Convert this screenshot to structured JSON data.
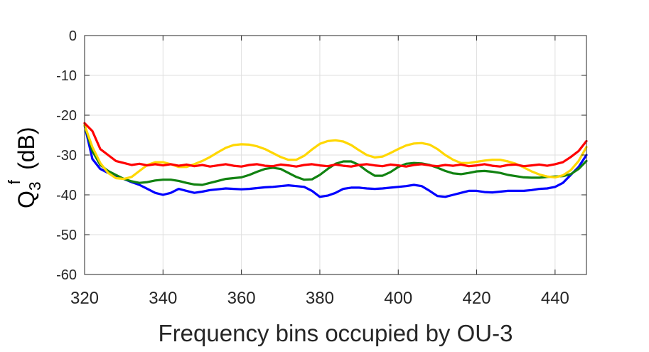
{
  "chart_data": {
    "type": "line",
    "xlabel": "Frequency bins occupied by OU-3",
    "ylabel": {
      "main": "Q",
      "subscript": "3",
      "superscript": "f",
      "unit": "(dB)"
    },
    "xlim": [
      320,
      448
    ],
    "ylim": [
      -60,
      0
    ],
    "xticks": [
      320,
      340,
      360,
      380,
      400,
      420,
      440
    ],
    "yticks": [
      0,
      -10,
      -20,
      -30,
      -40,
      -50,
      -60
    ],
    "grid": true,
    "legend": "none",
    "series": [
      {
        "color": "#0000ff",
        "x": [
          320,
          322,
          324,
          326,
          328,
          330,
          332,
          334,
          336,
          338,
          340,
          342,
          344,
          346,
          348,
          350,
          352,
          354,
          356,
          358,
          360,
          362,
          364,
          366,
          368,
          370,
          372,
          374,
          376,
          378,
          380,
          382,
          384,
          386,
          388,
          390,
          392,
          394,
          396,
          398,
          400,
          402,
          404,
          406,
          408,
          410,
          412,
          414,
          416,
          418,
          420,
          422,
          424,
          426,
          428,
          430,
          432,
          434,
          436,
          438,
          440,
          442,
          444,
          446,
          448
        ],
        "y": [
          -22.5,
          -31,
          -33.5,
          -34.5,
          -35.5,
          -36,
          -36.8,
          -37.5,
          -38.5,
          -39.5,
          -40,
          -39.5,
          -38.5,
          -39,
          -39.5,
          -39.2,
          -38.8,
          -38.6,
          -38.4,
          -38.5,
          -38.6,
          -38.5,
          -38.3,
          -38.1,
          -38,
          -37.8,
          -37.6,
          -37.8,
          -38,
          -39,
          -40.5,
          -40.2,
          -39.5,
          -38.5,
          -38.2,
          -38.2,
          -38.4,
          -38.5,
          -38.4,
          -38.2,
          -38,
          -37.8,
          -37.5,
          -37.8,
          -39,
          -40.3,
          -40.5,
          -40,
          -39.5,
          -39,
          -39,
          -39.3,
          -39.4,
          -39.2,
          -39,
          -39,
          -39,
          -38.8,
          -38.5,
          -38.4,
          -38,
          -37,
          -35,
          -33,
          -30
        ]
      },
      {
        "color": "#118211",
        "x": [
          320,
          322,
          324,
          326,
          328,
          330,
          332,
          334,
          336,
          338,
          340,
          342,
          344,
          346,
          348,
          350,
          352,
          354,
          356,
          358,
          360,
          362,
          364,
          366,
          368,
          370,
          372,
          374,
          376,
          378,
          380,
          382,
          384,
          386,
          388,
          390,
          392,
          394,
          396,
          398,
          400,
          402,
          404,
          406,
          408,
          410,
          412,
          414,
          416,
          418,
          420,
          422,
          424,
          426,
          428,
          430,
          432,
          434,
          436,
          438,
          440,
          442,
          444,
          446,
          448
        ],
        "y": [
          -22.5,
          -29,
          -32.5,
          -34,
          -35,
          -36,
          -36.6,
          -37,
          -36.8,
          -36.4,
          -36.2,
          -36.2,
          -36.5,
          -37,
          -37.4,
          -37.5,
          -37,
          -36.5,
          -36,
          -35.8,
          -35.6,
          -35,
          -34.2,
          -33.5,
          -33.2,
          -33.5,
          -34.5,
          -35.5,
          -36.2,
          -36.1,
          -35,
          -33.5,
          -32.2,
          -31.6,
          -31.6,
          -32.5,
          -34,
          -35.2,
          -35.2,
          -34.3,
          -33,
          -32.2,
          -32,
          -32.1,
          -32.5,
          -33.2,
          -34,
          -34.6,
          -34.8,
          -34.5,
          -34.1,
          -34,
          -34.2,
          -34.5,
          -35,
          -35.3,
          -35.6,
          -35.7,
          -35.7,
          -35.5,
          -35.4,
          -35.3,
          -34.8,
          -33.5,
          -31.5
        ]
      },
      {
        "color": "#ffd700",
        "x": [
          320,
          322,
          324,
          326,
          328,
          330,
          332,
          334,
          336,
          338,
          340,
          342,
          344,
          346,
          348,
          350,
          352,
          354,
          356,
          358,
          360,
          362,
          364,
          366,
          368,
          370,
          372,
          374,
          376,
          378,
          380,
          382,
          384,
          386,
          388,
          390,
          392,
          394,
          396,
          398,
          400,
          402,
          404,
          406,
          408,
          410,
          412,
          414,
          416,
          418,
          420,
          422,
          424,
          426,
          428,
          430,
          432,
          434,
          436,
          438,
          440,
          442,
          444,
          446,
          448
        ],
        "y": [
          -22.5,
          -28,
          -32,
          -34.5,
          -35.8,
          -36,
          -35.5,
          -34,
          -32.5,
          -31.8,
          -31.8,
          -32.3,
          -33,
          -33,
          -32.3,
          -31.5,
          -30.5,
          -29.3,
          -28.2,
          -27.5,
          -27.3,
          -27.4,
          -27.8,
          -28.5,
          -29.5,
          -30.5,
          -31.2,
          -31.2,
          -30.2,
          -28.6,
          -27.2,
          -26.5,
          -26.3,
          -26.6,
          -27.5,
          -28.8,
          -30,
          -30.6,
          -30.4,
          -29.5,
          -28.5,
          -27.6,
          -27.1,
          -27,
          -27.4,
          -28.5,
          -30,
          -31.2,
          -32,
          -32,
          -31.7,
          -31.4,
          -31.2,
          -31.2,
          -31.6,
          -32.2,
          -33.1,
          -34.1,
          -34.9,
          -35.4,
          -35.6,
          -35.1,
          -33.8,
          -31.5,
          -28
        ]
      },
      {
        "color": "#ff0000",
        "x": [
          320,
          322,
          324,
          326,
          328,
          330,
          332,
          334,
          336,
          338,
          340,
          342,
          344,
          346,
          348,
          350,
          352,
          354,
          356,
          358,
          360,
          362,
          364,
          366,
          368,
          370,
          372,
          374,
          376,
          378,
          380,
          382,
          384,
          386,
          388,
          390,
          392,
          394,
          396,
          398,
          400,
          402,
          404,
          406,
          408,
          410,
          412,
          414,
          416,
          418,
          420,
          422,
          424,
          426,
          428,
          430,
          432,
          434,
          436,
          438,
          440,
          442,
          444,
          446,
          448
        ],
        "y": [
          -22,
          -24,
          -28.5,
          -30,
          -31.5,
          -32,
          -32.5,
          -32.2,
          -32.6,
          -32.3,
          -32.6,
          -32.3,
          -32.7,
          -32.4,
          -32.8,
          -32.5,
          -32.9,
          -32.6,
          -32.3,
          -32.7,
          -32.9,
          -32.5,
          -32.3,
          -32.7,
          -32.8,
          -32.4,
          -32.6,
          -32.9,
          -32.5,
          -32.3,
          -32.6,
          -32.8,
          -32.4,
          -32.7,
          -32.9,
          -32.5,
          -32.3,
          -32.6,
          -32.8,
          -32.4,
          -32.6,
          -32.9,
          -32.5,
          -32.3,
          -32.6,
          -32.8,
          -32.5,
          -32.7,
          -32.4,
          -32.8,
          -32.6,
          -32.3,
          -32.7,
          -32.9,
          -32.5,
          -32.4,
          -32.8,
          -32.6,
          -32.4,
          -32.7,
          -32.3,
          -31.8,
          -30.5,
          -29,
          -26.5
        ]
      }
    ]
  }
}
